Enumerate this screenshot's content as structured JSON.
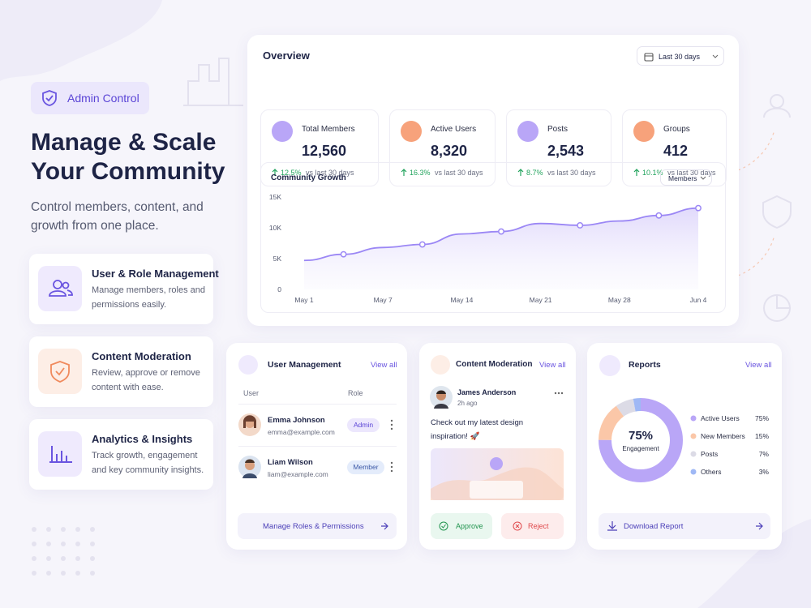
{
  "hero": {
    "badge": "Admin Control",
    "title_lines": [
      "Manage & Scale",
      "Your Community"
    ],
    "subtitle": "Control members, content, and growth from one place."
  },
  "features": [
    {
      "title": "User & Role Management",
      "description": "Manage members, roles and permissions easily."
    },
    {
      "title": "Content Moderation",
      "description": "Review, approve or remove content with ease."
    },
    {
      "title": "Analytics & Insights",
      "description": "Track growth, engagement and key community insights."
    }
  ],
  "overview": {
    "title": "Overview",
    "range": "Last 30 days",
    "stats": [
      {
        "label": "Total Members",
        "value": "12,560",
        "change": "12.5%",
        "compare": "vs last 30 days"
      },
      {
        "label": "Active Users",
        "value": "8,320",
        "change": "16.3%",
        "compare": "vs last 30 days"
      },
      {
        "label": "Posts",
        "value": "2,543",
        "change": "8.7%",
        "compare": "vs last 30 days"
      },
      {
        "label": "Groups",
        "value": "412",
        "change": "10.1%",
        "compare": "vs last 30 days"
      }
    ]
  },
  "chart_data": [
    {
      "type": "line",
      "title": "Community Growth",
      "filter": "Members",
      "categories": [
        "May 1",
        null,
        "May 7",
        null,
        "May 14",
        null,
        "May 21",
        null,
        "May 28",
        null,
        "Jun 4"
      ],
      "values": [
        4700,
        5700,
        6800,
        7300,
        9000,
        9400,
        10700,
        10400,
        11100,
        12000,
        13200
      ],
      "color": "#9b87f5",
      "ylim": [
        0,
        15000
      ],
      "yticks": [
        0,
        {
          "value": 5000,
          "label": "5K"
        },
        {
          "value": 10000,
          "label": "10K"
        },
        {
          "value": 15000,
          "label": "15K"
        }
      ],
      "grid": false
    },
    {
      "type": "pie",
      "center_value": "75%",
      "center_label": "Engagement",
      "categories": [
        "Active Users",
        "New Members",
        "Posts",
        "Others"
      ],
      "values": [
        75,
        15,
        7,
        3
      ],
      "value_labels": [
        "75%",
        "15%",
        "7%",
        "3%"
      ],
      "colors": [
        "#b9a6f7",
        "#fbc7a8",
        "#dcdbe6",
        "#9fb8f5"
      ]
    }
  ],
  "user_management": {
    "title": "User Management",
    "view_all": "View all",
    "columns": [
      "User",
      "Role"
    ],
    "rows": [
      {
        "name": "Emma Johnson",
        "email": "emma@example.com",
        "role": "Admin"
      },
      {
        "name": "Liam Wilson",
        "email": "liam@example.com",
        "role": "Member"
      }
    ],
    "action": "Manage Roles & Permissions"
  },
  "content_moderation": {
    "title": "Content Moderation",
    "view_all": "View all",
    "author": "James Anderson",
    "time": "2h ago",
    "text": "Check out my latest design inspiration! 🚀",
    "approve": "Approve",
    "reject": "Reject"
  },
  "reports": {
    "title": "Reports",
    "view_all": "View all",
    "action": "Download Report"
  }
}
